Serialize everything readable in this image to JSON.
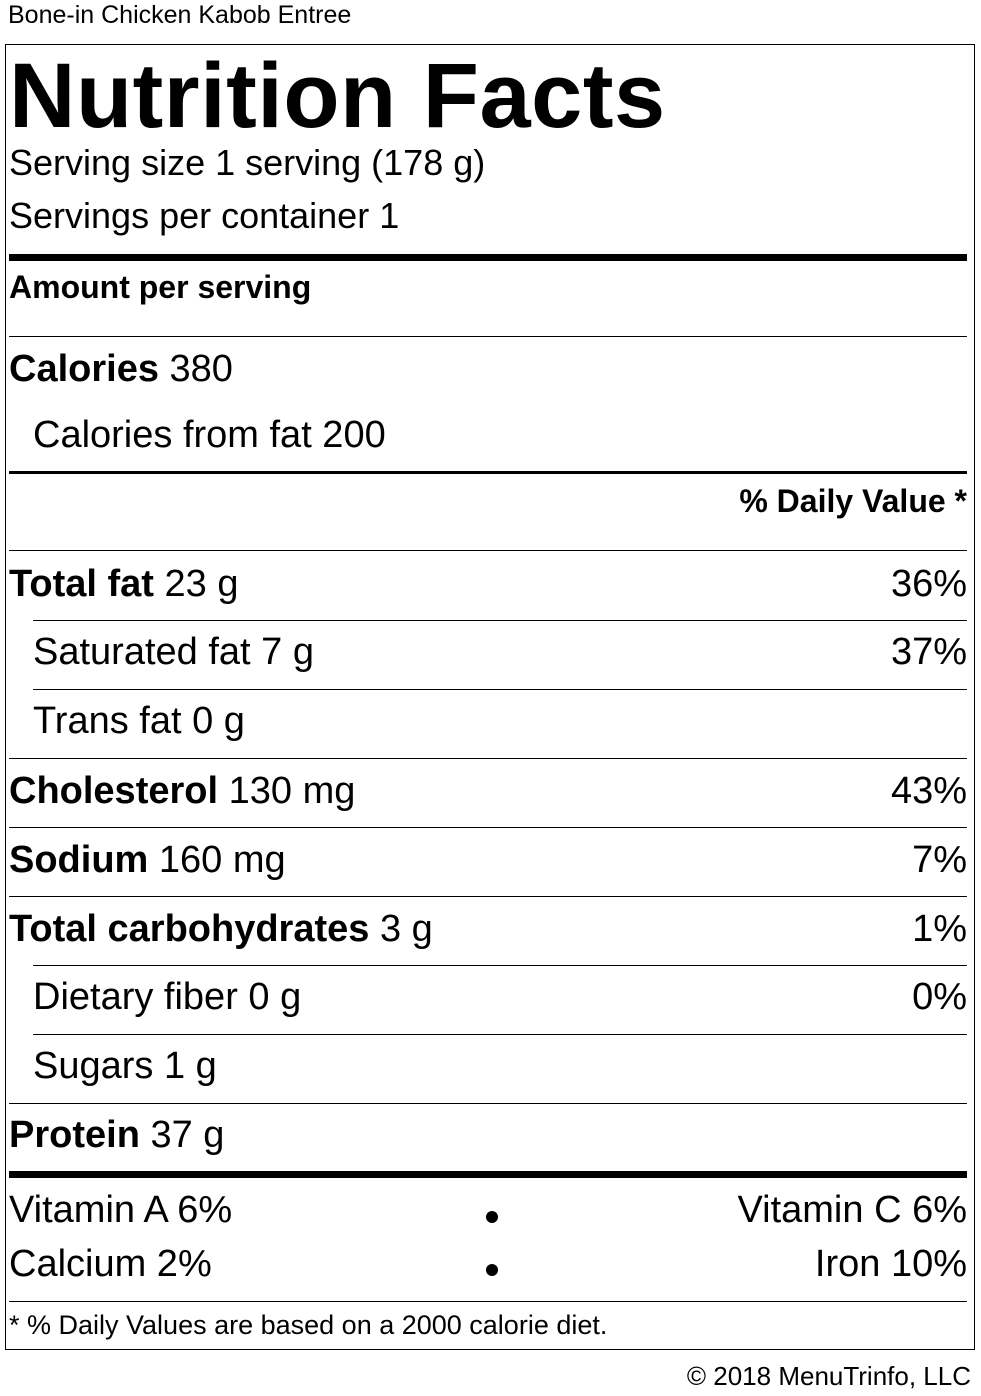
{
  "item_name": "Bone-in Chicken Kabob Entree",
  "label": {
    "title": "Nutrition Facts",
    "serving_size": "Serving size 1 serving (178 g)",
    "servings_per_container": "Servings per container 1",
    "amount_per_serving": "Amount per serving",
    "calories_label": "Calories",
    "calories_value": "380",
    "calories_from_fat": "Calories from fat 200",
    "daily_value_header": "% Daily Value *",
    "nutrients": [
      {
        "name": "Total fat",
        "amount": "23 g",
        "dv": "36%"
      },
      {
        "name": "Saturated fat",
        "amount": "7 g",
        "dv": "37%"
      },
      {
        "name": "Trans fat",
        "amount": "0 g",
        "dv": ""
      },
      {
        "name": "Cholesterol",
        "amount": "130 mg",
        "dv": "43%"
      },
      {
        "name": "Sodium",
        "amount": "160 mg",
        "dv": "7%"
      },
      {
        "name": "Total carbohydrates",
        "amount": "3 g",
        "dv": "1%"
      },
      {
        "name": "Dietary fiber",
        "amount": "0 g",
        "dv": "0%"
      },
      {
        "name": "Sugars",
        "amount": "1 g",
        "dv": ""
      },
      {
        "name": "Protein",
        "amount": "37 g",
        "dv": ""
      }
    ],
    "vitamins": {
      "vitamin_a": "Vitamin A 6%",
      "vitamin_c": "Vitamin C 6%",
      "calcium": "Calcium 2%",
      "iron": "Iron 10%"
    },
    "footnote": "* % Daily Values are based on a 2000 calorie diet."
  },
  "copyright": "© 2018 MenuTrinfo, LLC"
}
